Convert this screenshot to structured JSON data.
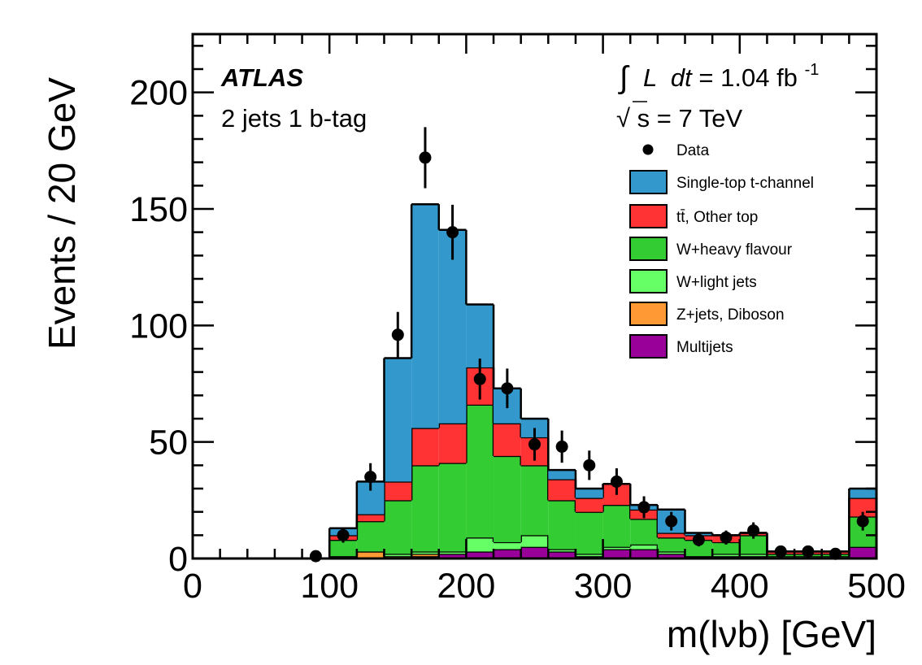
{
  "chart_data": {
    "type": "bar",
    "stacked": true,
    "histogram": true,
    "bin_width": 20,
    "x_edges": [
      0,
      20,
      40,
      60,
      80,
      100,
      120,
      140,
      160,
      180,
      200,
      220,
      240,
      260,
      280,
      300,
      320,
      340,
      360,
      380,
      400,
      420,
      440,
      460,
      480,
      500
    ],
    "xlim": [
      0,
      500
    ],
    "ylim": [
      0,
      225
    ],
    "xlabel": "m(lνb) [GeV]",
    "ylabel": "Events / 20 GeV",
    "x_ticks": [
      0,
      100,
      200,
      300,
      400,
      500
    ],
    "y_ticks": [
      0,
      50,
      100,
      150,
      200
    ],
    "atlas_label": "ATLAS",
    "selection_label": "2 jets 1 b-tag",
    "lumi": {
      "integral": "∫",
      "symbol": "L",
      "dt": "dt",
      "value": " = 1.04 fb",
      "exponent": "-1"
    },
    "energy": {
      "root": "√",
      "value": "s = 7 TeV"
    },
    "legend_position": "top-right",
    "series": [
      {
        "name": "Multijets",
        "color": "#990099",
        "values": [
          0,
          0,
          0,
          0,
          0,
          0,
          0,
          0,
          1,
          2,
          3,
          4,
          5,
          3,
          1,
          4,
          4,
          2,
          1,
          1,
          1,
          0,
          0,
          0,
          5
        ]
      },
      {
        "name": "Z+jets, Diboson",
        "color": "#ff9933",
        "values": [
          0,
          0,
          0,
          0,
          0,
          1,
          3,
          1,
          1,
          0,
          0,
          0,
          0,
          0,
          0,
          0,
          0,
          0,
          0,
          0,
          0,
          0,
          0,
          0,
          0
        ]
      },
      {
        "name": "W+light jets",
        "color": "#66ff66",
        "values": [
          0,
          0,
          0,
          0,
          0,
          0,
          0,
          1,
          1,
          1,
          6,
          3,
          5,
          1,
          1,
          1,
          2,
          1,
          0,
          1,
          1,
          1,
          1,
          1,
          0
        ]
      },
      {
        "name": "W+heavy flavour",
        "color": "#33cc33",
        "values": [
          0,
          0,
          0,
          0,
          0,
          7,
          13,
          23,
          37,
          38,
          57,
          37,
          30,
          21,
          18,
          18,
          11,
          6,
          7,
          5,
          8,
          1,
          1,
          1,
          13
        ]
      },
      {
        "name": "tt̄, Other top",
        "color": "#ff3333",
        "values": [
          0,
          0,
          0,
          0,
          0,
          2,
          3,
          8,
          16,
          17,
          16,
          14,
          12,
          9,
          6,
          9,
          4,
          2,
          2,
          3,
          1,
          1,
          1,
          1,
          8
        ]
      },
      {
        "name": "Single-top t-channel",
        "color": "#3399cc",
        "values": [
          0,
          0,
          0,
          0,
          0,
          3,
          14,
          53,
          96,
          83,
          27,
          15,
          8,
          4,
          4,
          0,
          2,
          10,
          1,
          0,
          0,
          0,
          0,
          0,
          4
        ]
      }
    ],
    "data": {
      "name": "Data",
      "x": [
        90,
        110,
        130,
        150,
        170,
        190,
        210,
        230,
        250,
        270,
        290,
        310,
        330,
        350,
        370,
        390,
        410,
        430,
        450,
        470,
        490
      ],
      "values": [
        1,
        10,
        35,
        96,
        172,
        140,
        77,
        73,
        49,
        48,
        40,
        33,
        22,
        16,
        8,
        9,
        12,
        3,
        3,
        2,
        16
      ],
      "errors": [
        1,
        3.2,
        5.9,
        9.8,
        13.1,
        11.8,
        8.8,
        8.5,
        7,
        6.9,
        6.3,
        5.7,
        4.7,
        4,
        2.8,
        3,
        3.5,
        1.7,
        1.7,
        1.4,
        4
      ]
    }
  },
  "legend": {
    "title": "",
    "entries": [
      {
        "label": "Data",
        "kind": "marker",
        "color": "#000000"
      },
      {
        "label": "Single-top t-channel",
        "kind": "box",
        "color": "#3399cc"
      },
      {
        "label": "tt̄, Other top",
        "kind": "box",
        "color": "#ff3333"
      },
      {
        "label": "W+heavy flavour",
        "kind": "box",
        "color": "#33cc33"
      },
      {
        "label": "W+light jets",
        "kind": "box",
        "color": "#66ff66"
      },
      {
        "label": "Z+jets, Diboson",
        "kind": "box",
        "color": "#ff9933"
      },
      {
        "label": "Multijets",
        "kind": "box",
        "color": "#990099"
      }
    ]
  }
}
